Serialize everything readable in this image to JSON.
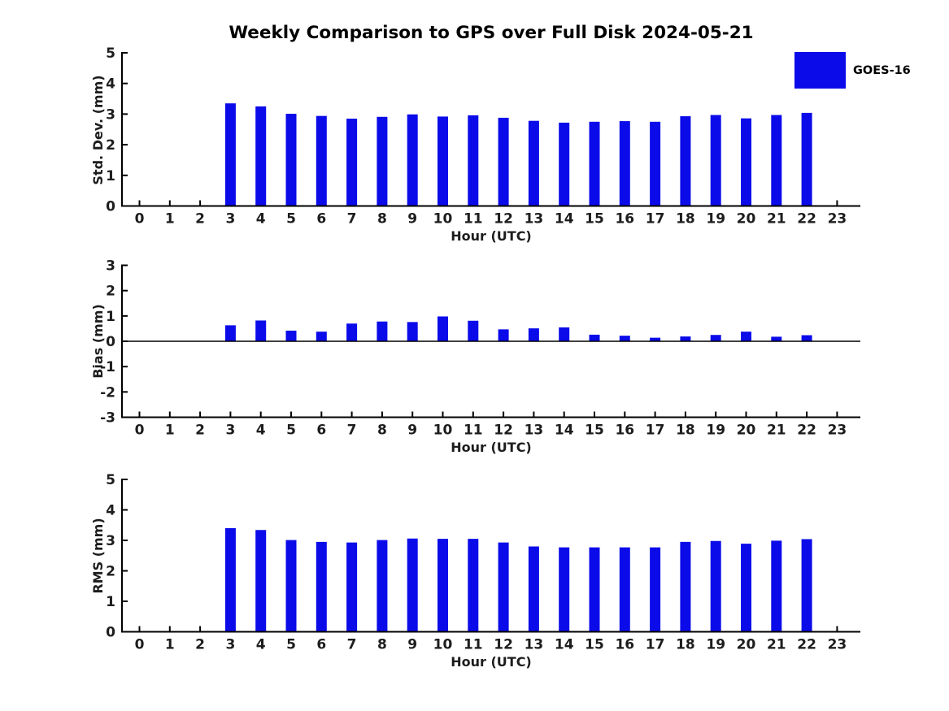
{
  "title": "Weekly Comparison to GPS over Full Disk 2024-05-21",
  "legend": {
    "label": "GOES-16",
    "swatch_color": "#0b0bea",
    "position": "top-right"
  },
  "colors": {
    "bar": "#0b0bea",
    "axis": "#000000",
    "text": "#1d1d1d",
    "background": "#ffffff"
  },
  "chart_data": [
    {
      "type": "bar",
      "name": "std-dev",
      "ylabel": "Std. Dev. (mm)",
      "xlabel": "Hour (UTC)",
      "ylim": [
        0,
        5
      ],
      "yticks": [
        0,
        1,
        2,
        3,
        4,
        5
      ],
      "categories": [
        0,
        1,
        2,
        3,
        4,
        5,
        6,
        7,
        8,
        9,
        10,
        11,
        12,
        13,
        14,
        15,
        16,
        17,
        18,
        19,
        20,
        21,
        22,
        23
      ],
      "x": [
        3,
        4,
        5,
        6,
        7,
        8,
        9,
        10,
        11,
        12,
        13,
        14,
        15,
        16,
        17,
        18,
        19,
        20,
        21,
        22
      ],
      "values": [
        3.35,
        3.25,
        3.01,
        2.94,
        2.85,
        2.91,
        2.99,
        2.92,
        2.96,
        2.88,
        2.78,
        2.72,
        2.75,
        2.77,
        2.75,
        2.93,
        2.97,
        2.86,
        2.97,
        3.04
      ],
      "zero_line": false,
      "grid": false,
      "series_name": "GOES-16"
    },
    {
      "type": "bar",
      "name": "bias",
      "ylabel": "Bias (mm)",
      "xlabel": "Hour (UTC)",
      "ylim": [
        -3,
        3
      ],
      "yticks": [
        3,
        2,
        1,
        0,
        -1,
        -2,
        -3
      ],
      "categories": [
        0,
        1,
        2,
        3,
        4,
        5,
        6,
        7,
        8,
        9,
        10,
        11,
        12,
        13,
        14,
        15,
        16,
        17,
        18,
        19,
        20,
        21,
        22,
        23
      ],
      "x": [
        3,
        4,
        5,
        6,
        7,
        8,
        9,
        10,
        11,
        12,
        13,
        14,
        15,
        16,
        17,
        18,
        19,
        20,
        21,
        22
      ],
      "values": [
        0.63,
        0.82,
        0.42,
        0.38,
        0.7,
        0.78,
        0.76,
        0.98,
        0.81,
        0.47,
        0.51,
        0.55,
        0.26,
        0.22,
        0.14,
        0.19,
        0.25,
        0.38,
        0.18,
        0.24
      ],
      "zero_line": true,
      "grid": false,
      "series_name": "GOES-16"
    },
    {
      "type": "bar",
      "name": "rms",
      "ylabel": "RMS (mm)",
      "xlabel": "Hour (UTC)",
      "ylim": [
        0,
        5
      ],
      "yticks": [
        0,
        1,
        2,
        3,
        4,
        5
      ],
      "categories": [
        0,
        1,
        2,
        3,
        4,
        5,
        6,
        7,
        8,
        9,
        10,
        11,
        12,
        13,
        14,
        15,
        16,
        17,
        18,
        19,
        20,
        21,
        22,
        23
      ],
      "x": [
        3,
        4,
        5,
        6,
        7,
        8,
        9,
        10,
        11,
        12,
        13,
        14,
        15,
        16,
        17,
        18,
        19,
        20,
        21,
        22
      ],
      "values": [
        3.4,
        3.34,
        3.01,
        2.95,
        2.93,
        3.01,
        3.06,
        3.05,
        3.05,
        2.93,
        2.8,
        2.77,
        2.77,
        2.77,
        2.77,
        2.95,
        2.98,
        2.89,
        2.99,
        3.04
      ],
      "zero_line": false,
      "grid": false,
      "series_name": "GOES-16"
    }
  ]
}
